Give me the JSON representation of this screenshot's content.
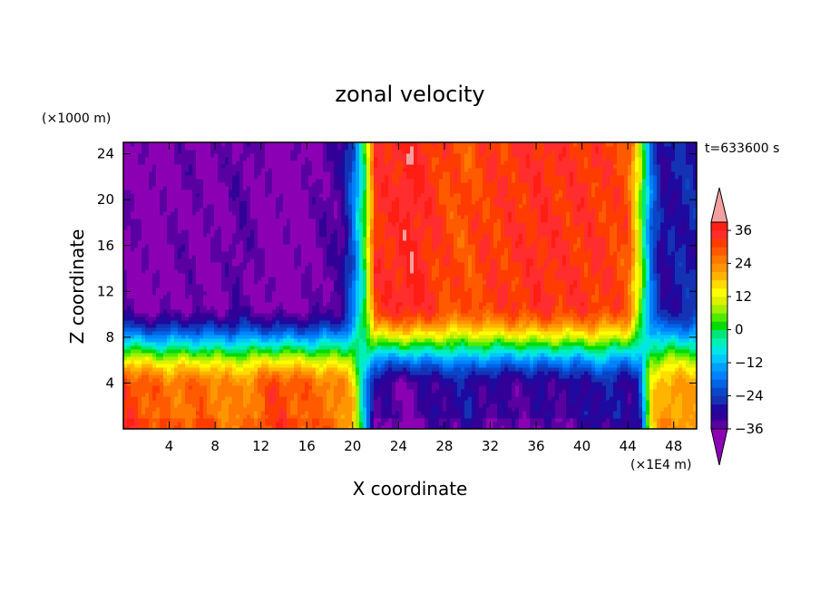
{
  "chart_data": {
    "type": "heatmap",
    "title": "zonal velocity",
    "xlabel": "X coordinate",
    "ylabel": "Z coordinate",
    "x_unit": "(×1E4 m)",
    "y_unit": "(×1000 m)",
    "time_label": "t=633600 s",
    "xlim": [
      0,
      50
    ],
    "ylim": [
      0,
      25
    ],
    "x_ticks": [
      "4",
      "8",
      "12",
      "16",
      "20",
      "24",
      "28",
      "32",
      "36",
      "40",
      "44",
      "48"
    ],
    "y_ticks": [
      "4",
      "8",
      "12",
      "16",
      "20",
      "24"
    ],
    "x_tick_values": [
      4,
      8,
      12,
      16,
      20,
      24,
      28,
      32,
      36,
      40,
      44,
      48
    ],
    "y_tick_values": [
      4,
      8,
      12,
      16,
      20,
      24
    ],
    "colorbar": {
      "labels": [
        "36",
        "24",
        "12",
        "0",
        "−12",
        "−24",
        "−36"
      ],
      "label_values": [
        36,
        24,
        12,
        0,
        -12,
        -24,
        -36
      ],
      "levels": [
        -39,
        -36,
        -33,
        -30,
        -27,
        -24,
        -21,
        -18,
        -15,
        -12,
        -9,
        -6,
        -3,
        0,
        3,
        6,
        9,
        12,
        15,
        18,
        21,
        24,
        27,
        30,
        33,
        36,
        39
      ],
      "colors": [
        "#8c00b4",
        "#5a00a0",
        "#320096",
        "#1e0aa0",
        "#1432b4",
        "#0a46c8",
        "#0064e6",
        "#0082ff",
        "#00a0ff",
        "#00c8ff",
        "#00e6e6",
        "#00f0b4",
        "#00e678",
        "#00dc00",
        "#50eb00",
        "#a0f000",
        "#dcf000",
        "#ffff00",
        "#ffdc00",
        "#ffb400",
        "#ff9600",
        "#ff7800",
        "#ff5a00",
        "#ff3c00",
        "#ff2d2d",
        "#ff1e14",
        "#f5a0a0"
      ]
    },
    "profile_upper": [
      -36,
      -37,
      -38,
      -38,
      -37,
      -36,
      -36,
      -37,
      -37,
      -36,
      -34,
      -35,
      -37,
      -38,
      -38,
      -38,
      -37,
      -36,
      -34,
      -33,
      -20,
      0,
      33,
      34,
      35,
      37,
      35,
      33,
      31,
      30,
      29,
      31,
      32,
      32,
      33,
      33,
      34,
      34,
      33,
      33,
      33,
      33,
      32,
      31,
      30,
      10,
      -18,
      -30,
      -28,
      -27,
      -27
    ],
    "profile_surface": [
      32,
      31,
      29,
      27,
      26,
      27,
      27,
      28,
      26,
      24,
      23,
      25,
      28,
      31,
      31,
      29,
      28,
      26,
      26,
      24,
      18,
      -10,
      -32,
      -33,
      -35,
      -36,
      -33,
      -32,
      -30,
      -30,
      -28,
      -31,
      -32,
      -33,
      -33,
      -33,
      -32,
      -32,
      -32,
      -32,
      -31,
      -28,
      -28,
      -29,
      -31,
      -26,
      14,
      21,
      22,
      21,
      20
    ],
    "pinch_x": [
      21.3,
      45.6
    ]
  }
}
